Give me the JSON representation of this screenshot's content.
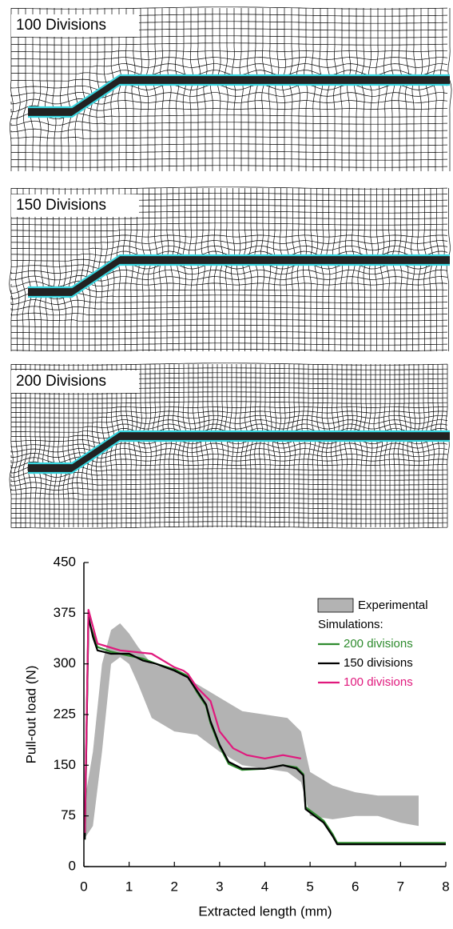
{
  "panels": [
    {
      "title": "100 Divisions"
    },
    {
      "title": "150 Divisions"
    },
    {
      "title": "200 Divisions"
    }
  ],
  "chart_data": {
    "type": "line",
    "xlabel": "Extracted length (mm)",
    "ylabel": "Pull-out load (N)",
    "xlim": [
      0,
      8
    ],
    "ylim": [
      0,
      450
    ],
    "xticks": [
      0,
      1,
      2,
      3,
      4,
      5,
      6,
      7,
      8
    ],
    "yticks": [
      0,
      75,
      150,
      225,
      300,
      375,
      450
    ],
    "legend_heading": "Simulations:",
    "band": {
      "name": "Experimental",
      "color": "#b3b3b3",
      "x": [
        0,
        0.2,
        0.4,
        0.6,
        0.8,
        1.0,
        1.2,
        1.5,
        2.0,
        2.5,
        3.0,
        3.5,
        4.0,
        4.5,
        4.8,
        5.0,
        5.5,
        6.0,
        6.5,
        7.0,
        7.4
      ],
      "upper": [
        90,
        170,
        300,
        350,
        360,
        345,
        325,
        300,
        290,
        270,
        250,
        230,
        225,
        220,
        200,
        140,
        120,
        110,
        105,
        105,
        105
      ],
      "lower": [
        40,
        60,
        170,
        300,
        310,
        300,
        270,
        220,
        200,
        195,
        170,
        150,
        145,
        140,
        125,
        75,
        70,
        75,
        75,
        65,
        60
      ]
    },
    "series": [
      {
        "name": "200 divisions",
        "color": "#2e8b2e",
        "x": [
          0.02,
          0.1,
          0.2,
          0.3,
          0.6,
          1.0,
          1.3,
          1.6,
          2.0,
          2.3,
          2.5,
          2.7,
          2.8,
          3.0,
          3.2,
          3.5,
          4.0,
          4.4,
          4.7,
          4.85,
          4.9,
          5.1,
          5.3,
          5.5,
          5.6,
          8.0
        ],
        "values": [
          40,
          365,
          345,
          325,
          318,
          312,
          308,
          300,
          292,
          282,
          258,
          238,
          212,
          178,
          152,
          143,
          145,
          150,
          147,
          137,
          88,
          78,
          68,
          48,
          35,
          35
        ]
      },
      {
        "name": "150 divisions",
        "color": "#000000",
        "x": [
          0.02,
          0.1,
          0.2,
          0.3,
          0.6,
          1.0,
          1.3,
          1.6,
          2.0,
          2.3,
          2.5,
          2.7,
          2.8,
          3.0,
          3.2,
          3.5,
          4.0,
          4.4,
          4.7,
          4.85,
          4.9,
          5.1,
          5.3,
          5.5,
          5.6,
          8.0
        ],
        "values": [
          40,
          370,
          340,
          320,
          315,
          315,
          305,
          300,
          290,
          280,
          260,
          240,
          215,
          180,
          155,
          145,
          145,
          150,
          145,
          135,
          85,
          75,
          65,
          45,
          33,
          33
        ]
      },
      {
        "name": "100 divisions",
        "color": "#e0197d",
        "x": [
          0.02,
          0.1,
          0.3,
          0.8,
          1.5,
          2.0,
          2.2,
          2.3,
          2.5,
          2.8,
          3.0,
          3.3,
          3.6,
          4.0,
          4.4,
          4.8
        ],
        "values": [
          50,
          380,
          330,
          320,
          315,
          295,
          290,
          285,
          265,
          245,
          200,
          175,
          165,
          160,
          165,
          160
        ]
      }
    ]
  }
}
